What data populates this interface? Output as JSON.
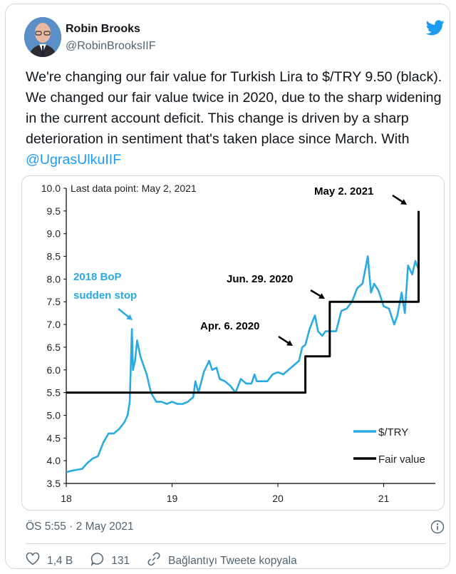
{
  "tweet": {
    "author_name": "Robin Brooks",
    "author_handle": "@RobinBrooksIIF",
    "text": "We're changing our fair value for Turkish Lira to $/TRY 9.50 (black). We changed our fair value twice in 2020, due to the sharp widening in the current account deficit. This change is driven by a sharp deterioration in sentiment that's taken place since March. With ",
    "mention": "@UgrasUlkuIIF",
    "timestamp": "ÖS 5:55 · 2 May 2021",
    "likes": "1,4 B",
    "replies": "131",
    "copy_link": "Bağlantıyı Tweete kopyala",
    "icons": [
      "twitter-bird-icon",
      "info-icon",
      "heart-icon",
      "reply-icon",
      "link-icon"
    ],
    "colors": {
      "accent": "#1d9bf0",
      "text": "#0f1419",
      "muted": "#536471"
    }
  },
  "chart_data": {
    "type": "line",
    "note": "Last data point: May 2, 2021",
    "ylim": [
      3.5,
      10.0
    ],
    "yticks": [
      "3.5",
      "4.0",
      "4.5",
      "5.0",
      "5.5",
      "6.0",
      "6.5",
      "7.0",
      "7.5",
      "8.0",
      "8.5",
      "9.0",
      "9.5",
      "10.0"
    ],
    "xlim": [
      2018,
      2021.5
    ],
    "xticks": [
      "18",
      "19",
      "20",
      "21"
    ],
    "legend_position": "bottom-right",
    "grid": false,
    "series": [
      {
        "name": "$/TRY",
        "color": "#29abe2",
        "points": [
          [
            2018.0,
            3.75
          ],
          [
            2018.05,
            3.78
          ],
          [
            2018.1,
            3.8
          ],
          [
            2018.15,
            3.82
          ],
          [
            2018.2,
            3.95
          ],
          [
            2018.25,
            4.05
          ],
          [
            2018.3,
            4.1
          ],
          [
            2018.35,
            4.4
          ],
          [
            2018.4,
            4.6
          ],
          [
            2018.45,
            4.6
          ],
          [
            2018.5,
            4.7
          ],
          [
            2018.55,
            4.85
          ],
          [
            2018.58,
            5.0
          ],
          [
            2018.6,
            5.3
          ],
          [
            2018.62,
            6.9
          ],
          [
            2018.63,
            6.0
          ],
          [
            2018.65,
            6.2
          ],
          [
            2018.67,
            6.65
          ],
          [
            2018.7,
            6.3
          ],
          [
            2018.73,
            6.1
          ],
          [
            2018.76,
            5.9
          ],
          [
            2018.8,
            5.5
          ],
          [
            2018.85,
            5.3
          ],
          [
            2018.9,
            5.3
          ],
          [
            2018.95,
            5.25
          ],
          [
            2019.0,
            5.3
          ],
          [
            2019.05,
            5.25
          ],
          [
            2019.1,
            5.25
          ],
          [
            2019.15,
            5.3
          ],
          [
            2019.2,
            5.4
          ],
          [
            2019.22,
            5.75
          ],
          [
            2019.25,
            5.5
          ],
          [
            2019.3,
            5.95
          ],
          [
            2019.35,
            6.2
          ],
          [
            2019.38,
            6.0
          ],
          [
            2019.42,
            6.05
          ],
          [
            2019.45,
            5.8
          ],
          [
            2019.5,
            5.75
          ],
          [
            2019.55,
            5.65
          ],
          [
            2019.6,
            5.5
          ],
          [
            2019.65,
            5.8
          ],
          [
            2019.7,
            5.7
          ],
          [
            2019.75,
            5.7
          ],
          [
            2019.78,
            5.9
          ],
          [
            2019.8,
            5.75
          ],
          [
            2019.9,
            5.75
          ],
          [
            2019.95,
            5.9
          ],
          [
            2020.0,
            5.95
          ],
          [
            2020.05,
            5.9
          ],
          [
            2020.1,
            6.0
          ],
          [
            2020.15,
            6.1
          ],
          [
            2020.2,
            6.2
          ],
          [
            2020.23,
            6.5
          ],
          [
            2020.26,
            6.55
          ],
          [
            2020.3,
            6.9
          ],
          [
            2020.35,
            7.2
          ],
          [
            2020.38,
            6.85
          ],
          [
            2020.42,
            6.75
          ],
          [
            2020.45,
            6.85
          ],
          [
            2020.5,
            6.85
          ],
          [
            2020.55,
            6.85
          ],
          [
            2020.6,
            7.3
          ],
          [
            2020.65,
            7.35
          ],
          [
            2020.7,
            7.5
          ],
          [
            2020.75,
            7.8
          ],
          [
            2020.8,
            7.9
          ],
          [
            2020.85,
            8.5
          ],
          [
            2020.88,
            7.7
          ],
          [
            2020.91,
            7.9
          ],
          [
            2020.95,
            7.75
          ],
          [
            2021.0,
            7.4
          ],
          [
            2021.05,
            7.35
          ],
          [
            2021.1,
            7.0
          ],
          [
            2021.13,
            7.2
          ],
          [
            2021.17,
            7.7
          ],
          [
            2021.2,
            7.25
          ],
          [
            2021.23,
            8.3
          ],
          [
            2021.27,
            8.1
          ],
          [
            2021.3,
            8.4
          ],
          [
            2021.33,
            8.2
          ]
        ]
      },
      {
        "name": "Fair value",
        "color": "#000000",
        "points": [
          [
            2018.0,
            5.5
          ],
          [
            2020.26,
            5.5
          ],
          [
            2020.26,
            6.3
          ],
          [
            2020.49,
            6.3
          ],
          [
            2020.49,
            7.5
          ],
          [
            2021.33,
            7.5
          ],
          [
            2021.33,
            9.5
          ]
        ]
      }
    ],
    "annotations": [
      {
        "text": "2018 BoP",
        "color": "#29abe2"
      },
      {
        "text": "sudden stop",
        "color": "#29abe2"
      },
      {
        "text": "Apr. 6. 2020",
        "color": "#000000"
      },
      {
        "text": "Jun. 29. 2020",
        "color": "#000000"
      },
      {
        "text": "May 2. 2021",
        "color": "#000000"
      }
    ]
  }
}
